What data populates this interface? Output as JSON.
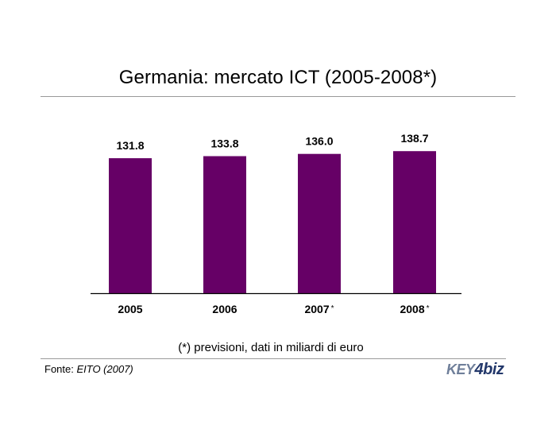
{
  "title": "Germania: mercato ICT (2005-2008*)",
  "note": "(*) previsioni, dati in miliardi di euro",
  "source": {
    "prefix": "Fonte: ",
    "name": "EITO (2007)"
  },
  "logo": {
    "part1": "KEY",
    "part2": "4biz"
  },
  "colors": {
    "bar": "#660066",
    "axis": "#000000",
    "rule": "#9a9a9a"
  },
  "chart_data": {
    "type": "bar",
    "categories": [
      "2005",
      "2006",
      "2007",
      "2008"
    ],
    "category_marks": [
      "",
      "",
      "*",
      "*"
    ],
    "values": [
      131.8,
      133.8,
      136.0,
      138.7
    ],
    "value_labels": [
      "131.8",
      "133.8",
      "136.0",
      "138.7"
    ],
    "title": "Germania: mercato ICT (2005-2008*)",
    "xlabel": "",
    "ylabel": "",
    "ylim": [
      0,
      150
    ],
    "grid": false,
    "legend": "none"
  }
}
